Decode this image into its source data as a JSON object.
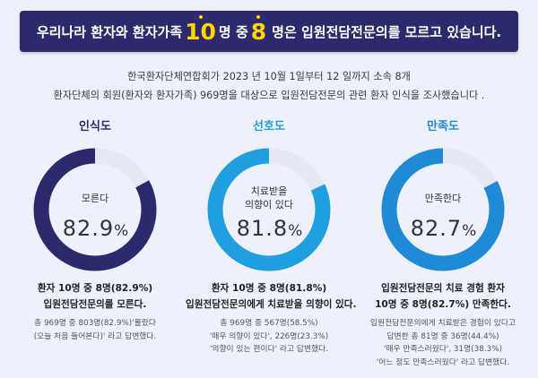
{
  "header": {
    "banner_lead": "우리나라 환자와 환자가족",
    "banner_num1": "10",
    "banner_mid": "명 중",
    "banner_num2": "8",
    "banner_tail": "명은 입원전담전문의를 모르고 있습니다.",
    "intro_line1": "한국환자단체연합회가 2023 년 10월 1일부터 12 일까지 소속 8개",
    "intro_line2": "환자단체의 회원(환자와 환자가족) 969명을 대상으로 입원전담전문의 관련 환자 인식을 조사했습니다 ."
  },
  "colors": {
    "banner_bg": "#2c2a6d",
    "banner_highlight": "#ffd400",
    "awareness": "#2c2a6d",
    "preference": "#1f9fe0",
    "satisfaction": "#1f8bd6",
    "ring_track": "#e6e8f3"
  },
  "chart_data": [
    {
      "type": "pie",
      "title": "인식도",
      "ring_label": "모른다",
      "value_text": "82.9",
      "unit": "%",
      "values": [
        82.9,
        17.1
      ],
      "headline": [
        "환자 10명 중 8명(82.9%)",
        "입원전담전문의를 모른다."
      ],
      "body": [
        "총 969명 중 803명(82.9%)'몰랐다",
        "(오늘 처음 들어본다)' 라고 답변했다."
      ]
    },
    {
      "type": "pie",
      "title": "선호도",
      "ring_label": [
        "치료받을",
        "의향이 있다"
      ],
      "value_text": "81.8",
      "unit": "%",
      "values": [
        81.8,
        18.2
      ],
      "headline": [
        "환자 10명 중 8명(81.8%)",
        "입원전담전문의에게 치료받을 의향이 있다."
      ],
      "body": [
        "총 969명 중 567명(58.5%)",
        "'매우 의향이 있다', 226명(23.3%)",
        "'의향이 있는 편이다' 라고 답변했다."
      ]
    },
    {
      "type": "pie",
      "title": "만족도",
      "ring_label": "만족한다",
      "value_text": "82.7",
      "unit": "%",
      "values": [
        82.7,
        17.3
      ],
      "headline": [
        "입원전담전문의 치료 경험 환자",
        "10명 중 8명(82.7%) 만족한다."
      ],
      "body": [
        "입원전담전문의에게 치료받은 경험이 있다고",
        "답변한 총 81명 중 36명(44.4%)",
        "'매우 만족스러웠다', 31명(38.3%)",
        "'어느 정도 만족스러웠다' 라고 답변했다."
      ]
    }
  ]
}
